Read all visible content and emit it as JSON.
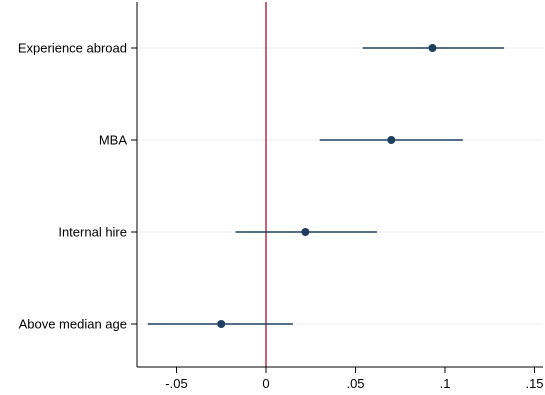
{
  "chart_data": {
    "type": "scatter",
    "title": "",
    "xlabel": "",
    "ylabel": "",
    "categories": [
      "Experience abroad",
      "MBA",
      "Internal hire",
      "Above median age"
    ],
    "series": [
      {
        "estimates": [
          0.093,
          0.07,
          0.022,
          -0.025
        ],
        "ci_low": [
          0.054,
          0.03,
          -0.017,
          -0.066
        ],
        "ci_high": [
          0.133,
          0.11,
          0.062,
          0.015
        ]
      }
    ],
    "xlim": [
      -0.075,
      0.155
    ],
    "xticks": [
      -0.05,
      0,
      0.05,
      0.1,
      0.15
    ],
    "xtick_labels": [
      "-.05",
      "0",
      ".05",
      ".1",
      ".15"
    ],
    "reference_line": 0,
    "grid": true,
    "legend": "none",
    "colors": {
      "marker": "#1f3f60",
      "reference_line": "#a50f34",
      "grid": "#eeeeee",
      "axis": "#000000"
    }
  }
}
